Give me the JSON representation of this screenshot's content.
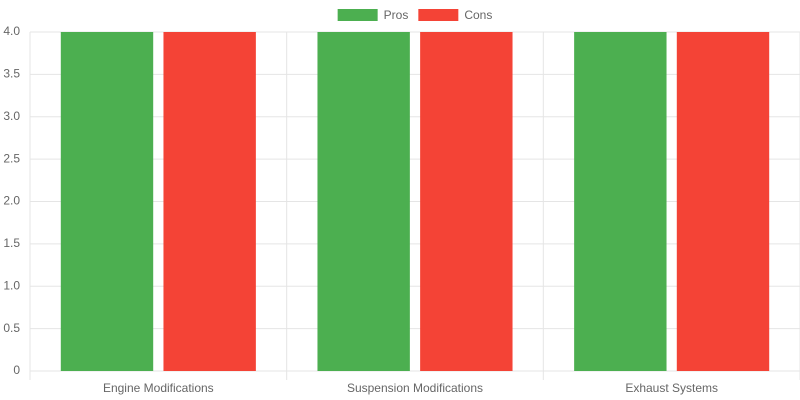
{
  "chart_data": {
    "type": "bar",
    "categories": [
      "Engine Modifications",
      "Suspension Modifications",
      "Exhaust Systems"
    ],
    "series": [
      {
        "name": "Pros",
        "color": "#4caf50",
        "values": [
          4,
          4,
          4
        ]
      },
      {
        "name": "Cons",
        "color": "#f44336",
        "values": [
          4,
          4,
          4
        ]
      }
    ],
    "ylim": [
      0,
      4
    ],
    "yticks": [
      0,
      0.5,
      {
        "value": 1,
        "label": "1.0"
      },
      1.5,
      {
        "value": 2,
        "label": "2.0"
      },
      2.5,
      {
        "value": 3,
        "label": "3.0"
      },
      3.5,
      {
        "value": 4,
        "label": "4.0"
      }
    ],
    "grid": true,
    "legend": "top"
  }
}
